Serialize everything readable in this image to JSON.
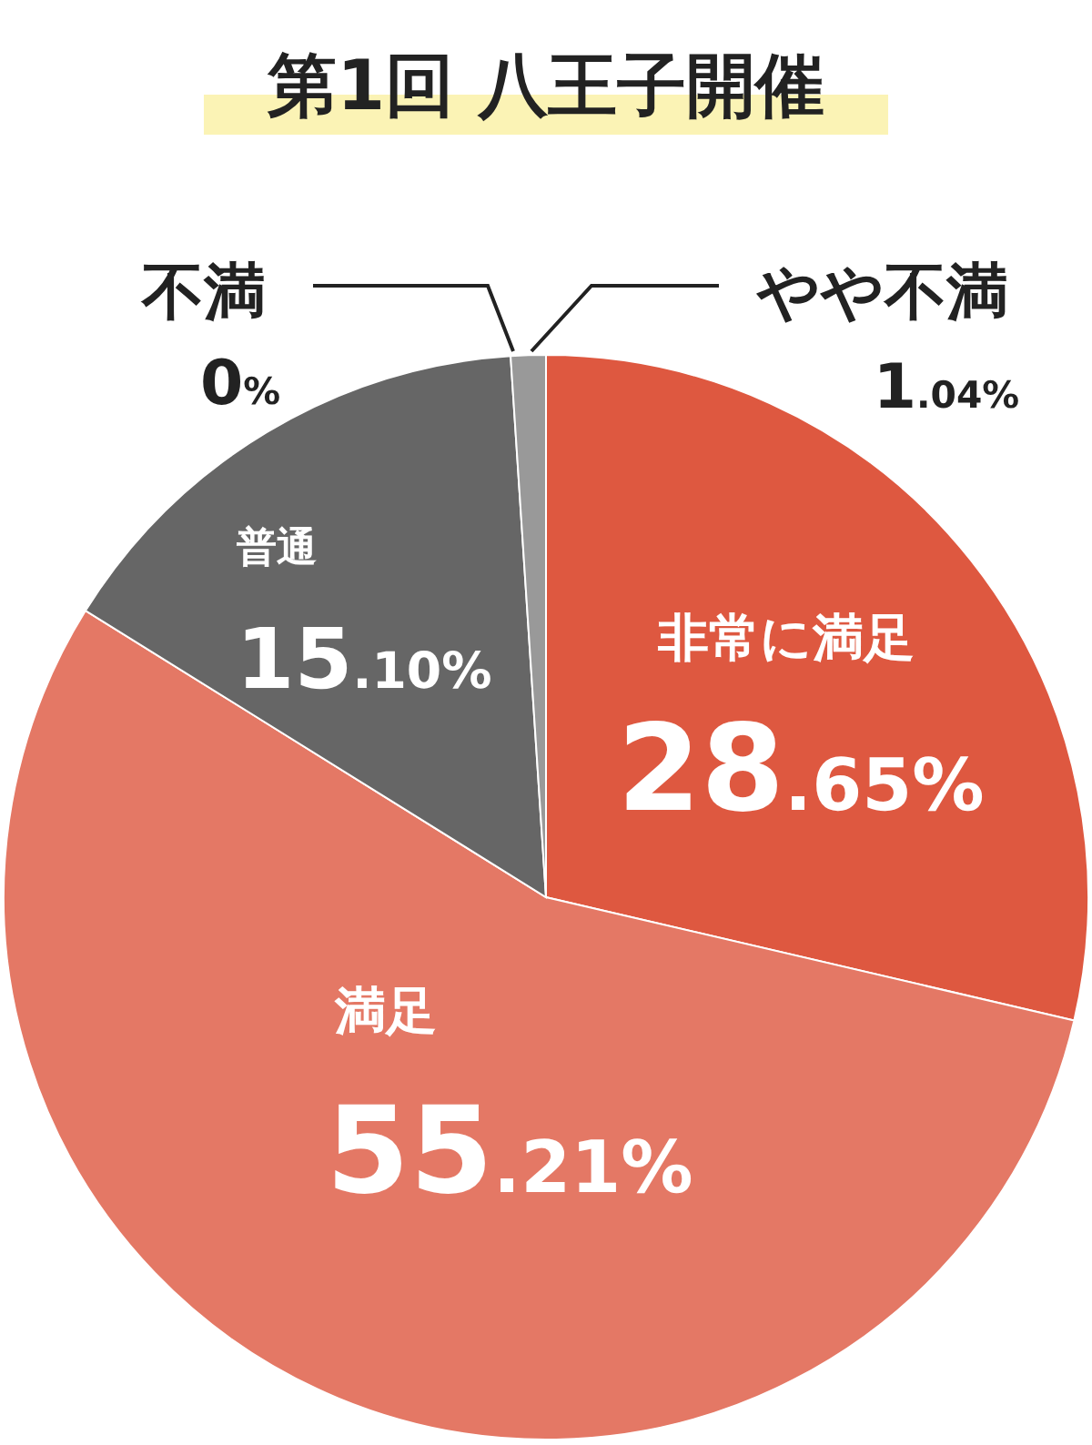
{
  "chart_data": {
    "type": "pie",
    "title": "第1回 八王子開催",
    "categories": [
      "非常に満足",
      "満足",
      "普通",
      "やや不満",
      "不満"
    ],
    "values": [
      28.65,
      55.21,
      15.1,
      1.04,
      0
    ],
    "value_labels": [
      "28.65%",
      "55.21%",
      "15.10%",
      "1.04%",
      "0%"
    ],
    "colors": [
      "#de5840",
      "#e47865",
      "#666666",
      "#999999",
      "#444444"
    ]
  }
}
